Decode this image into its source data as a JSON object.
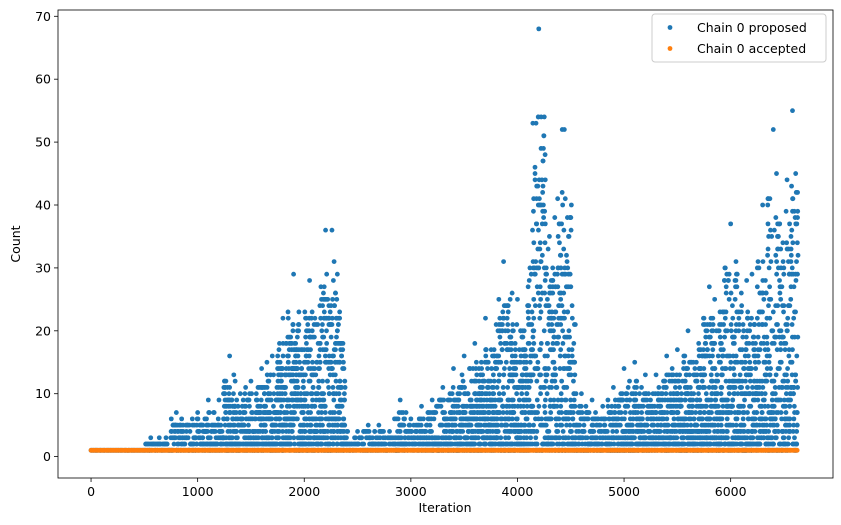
{
  "chart_data": {
    "type": "scatter",
    "title": "",
    "xlabel": "Iteration",
    "ylabel": "Count",
    "xlim": [
      -310,
      6960
    ],
    "ylim": [
      -3.4,
      71
    ],
    "xticks": [
      0,
      1000,
      2000,
      3000,
      4000,
      5000,
      6000
    ],
    "yticks": [
      0,
      10,
      20,
      30,
      40,
      50,
      60,
      70
    ],
    "grid": false,
    "legend_position": "top-right",
    "colors": {
      "proposed": "#1f77b4",
      "accepted": "#ff7f0e"
    },
    "series": [
      {
        "name": "Chain 0 proposed",
        "note_points": "scatter of proposal counts per iteration",
        "x": [
          0,
          560,
          600,
          640,
          700,
          760,
          800,
          850,
          900,
          950,
          1000,
          1050,
          1100,
          1150,
          1200,
          1250,
          1300,
          1350,
          1400,
          1450,
          1500,
          1550,
          1600,
          1650,
          1700,
          1750,
          1800,
          1850,
          1900,
          1920,
          1950,
          2000,
          2050,
          2100,
          2150,
          2180,
          2200,
          2230,
          2260,
          2280,
          2300,
          2320,
          2350,
          2400,
          2500,
          2600,
          2700,
          2800,
          2900,
          3000,
          3100,
          3200,
          3300,
          3400,
          3500,
          3600,
          3700,
          3800,
          3870,
          3900,
          3950,
          4000,
          4050,
          4100,
          4150,
          4180,
          4200,
          4230,
          4260,
          4300,
          4350,
          4380,
          4420,
          4440,
          4460,
          4480,
          4550,
          4600,
          4700,
          4800,
          4900,
          5000,
          5100,
          5200,
          5300,
          5400,
          5500,
          5600,
          5700,
          5750,
          5800,
          5850,
          5900,
          5950,
          6000,
          6050,
          6100,
          6150,
          6200,
          6250,
          6300,
          6350,
          6400,
          6430,
          6460,
          6490,
          6520,
          6550,
          6580,
          6610,
          6630
        ],
        "y": [
          1,
          3,
          2,
          3,
          2,
          3,
          7,
          6,
          5,
          6,
          7,
          5,
          9,
          7,
          9,
          8,
          16,
          8,
          10,
          11,
          12,
          10,
          14,
          15,
          16,
          14,
          22,
          15,
          29,
          16,
          21,
          17,
          28,
          22,
          18,
          26,
          36,
          22,
          36,
          31,
          22,
          21,
          5,
          4,
          4,
          5,
          5,
          4,
          9,
          6,
          8,
          9,
          11,
          14,
          16,
          18,
          22,
          21,
          31,
          18,
          26,
          25,
          20,
          23,
          39,
          37,
          68,
          44,
          28,
          35,
          38,
          30,
          52,
          52,
          32,
          27,
          10,
          10,
          9,
          8,
          11,
          14,
          15,
          13,
          13,
          16,
          17,
          20,
          18,
          22,
          27,
          25,
          23,
          30,
          37,
          31,
          26,
          28,
          29,
          30,
          40,
          37,
          52,
          45,
          37,
          34,
          39,
          29,
          55,
          45,
          19
        ]
      },
      {
        "name": "Chain 0 accepted",
        "x_range": [
          0,
          6630
        ],
        "y_value": 1
      }
    ]
  }
}
